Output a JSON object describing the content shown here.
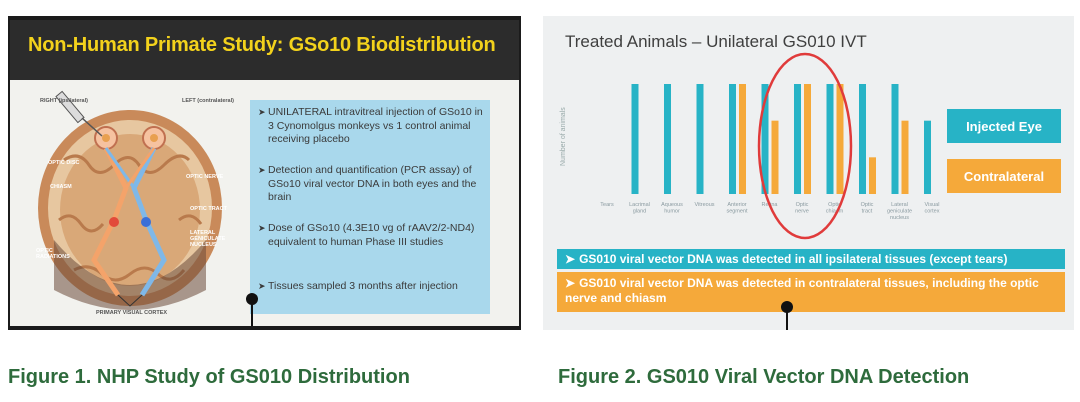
{
  "figure1": {
    "slide_title": "Non-Human Primate Study: GSo10 Biodistribution",
    "diagram_labels": {
      "right": "RIGHT (ipsilateral)",
      "left": "LEFT (contralateral)",
      "optic_disc": "OPTIC DISC",
      "chiasm": "CHIASM",
      "optic_radiations": "OPTIC RADIATIONS",
      "optic_nerve": "OPTIC NERVE",
      "optic_tract": "OPTIC TRACT",
      "lateral_geniculate": "LATERAL GENICULATE NUCLEUS",
      "primary_visual_cortex": "PRIMARY VISUAL CORTEX"
    },
    "bullets": [
      "UNILATERAL intravitreal injection of GSo10 in 3 Cynomolgus monkeys vs 1 control animal receiving placebo",
      "Detection and quantification (PCR assay) of GSo10 viral vector DNA in both eyes and the brain",
      "Dose of GSo10 (4.3E10 vg of rAAV2/2-ND4) equivalent to human Phase III studies",
      "Tissues sampled 3 months after injection"
    ],
    "caption": "Figure 1.  NHP Study of GS010 Distribution"
  },
  "figure2": {
    "slide_title": "Treated Animals – Unilateral GS010 IVT",
    "legend": [
      {
        "label": "Injected Eye",
        "color": "#27b3c6"
      },
      {
        "label": "Contralateral",
        "color": "#f5a93a"
      }
    ],
    "band_ipsilateral": "GS010 viral vector DNA was detected in all ipsilateral tissues (except tears)",
    "band_contralateral": "GS010 viral vector DNA was detected in contralateral tissues, including the optic nerve and chiasm",
    "caption": "Figure 2. GS010 Viral Vector DNA Detection"
  },
  "chart_data": {
    "type": "bar",
    "title": "Treated Animals – Unilateral GS010 IVT",
    "ylabel": "Number of animals",
    "xlabel": "",
    "ylim": [
      0,
      3
    ],
    "grid": false,
    "legend_position": "right",
    "categories": [
      "Tears",
      "Lacrimal gland",
      "Aqueous humor",
      "Vitreous",
      "Anterior segment",
      "Retina",
      "Optic nerve",
      "Optic chiasm",
      "Optic tract",
      "Lateral geniculate nucleus",
      "Visual cortex"
    ],
    "series": [
      {
        "name": "Injected Eye",
        "color": "#27b3c6",
        "values": [
          0,
          3,
          3,
          3,
          3,
          3,
          3,
          3,
          3,
          3,
          2
        ]
      },
      {
        "name": "Contralateral",
        "color": "#f5a93a",
        "values": [
          0,
          0,
          0,
          0,
          3,
          2,
          3,
          3,
          1,
          2,
          0
        ]
      }
    ],
    "highlight": [
      "Optic nerve",
      "Optic chiasm"
    ]
  }
}
